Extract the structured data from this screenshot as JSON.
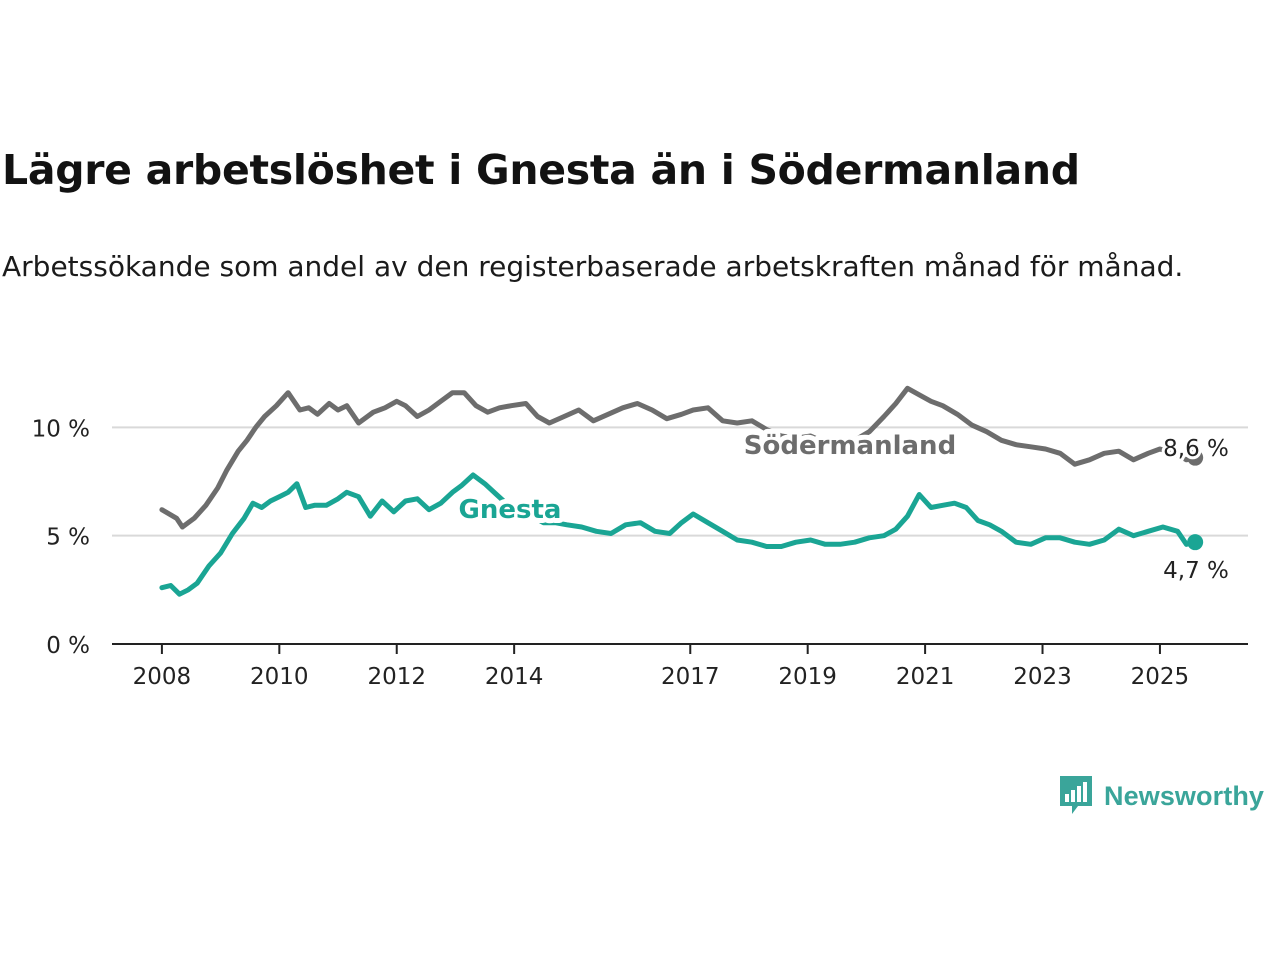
{
  "title": "Lägre arbetslöshet i Gnesta än i Södermanland",
  "subtitle": "Arbetssökande som andel av den registerbaserade arbetskraften månad för månad.",
  "brand": {
    "name": "Newsworthy",
    "color": "#3aa59a",
    "icon": "bar-chart-speech-bubble-icon"
  },
  "chart_data": {
    "type": "line",
    "title": "Lägre arbetslöshet i Gnesta än i Södermanland",
    "subtitle": "Arbetssökande som andel av den registerbaserade arbetskraften månad för månad.",
    "xlabel": "",
    "ylabel": "",
    "x_ticks": [
      "2008",
      "2010",
      "2012",
      "2014",
      "2017",
      "2019",
      "2021",
      "2023",
      "2025"
    ],
    "x_tick_values": [
      2008,
      2010,
      2012,
      2014,
      2017,
      2019,
      2021,
      2023,
      2025
    ],
    "y_ticks": [
      "0 %",
      "5 %",
      "10 %"
    ],
    "y_tick_values": [
      0,
      5,
      10
    ],
    "xlim": [
      2007.15,
      2026.5
    ],
    "ylim": [
      0,
      12
    ],
    "grid": "horizontal",
    "legend": "direct labels on lines",
    "series": [
      {
        "name": "Södermanland",
        "color": "#6d6d6d",
        "end_label": "8,6 %",
        "x": [
          2008.0,
          2008.25,
          2008.35,
          2008.55,
          2008.75,
          2008.95,
          2009.1,
          2009.3,
          2009.45,
          2009.6,
          2009.75,
          2009.95,
          2010.15,
          2010.35,
          2010.5,
          2010.65,
          2010.85,
          2011.0,
          2011.15,
          2011.35,
          2011.6,
          2011.8,
          2012.0,
          2012.15,
          2012.35,
          2012.55,
          2012.75,
          2012.95,
          2013.15,
          2013.35,
          2013.55,
          2013.75,
          2013.95,
          2014.2,
          2014.4,
          2014.6,
          2014.85,
          2015.1,
          2015.35,
          2015.6,
          2015.85,
          2016.1,
          2016.35,
          2016.6,
          2016.85,
          2017.05,
          2017.3,
          2017.55,
          2017.8,
          2018.05,
          2018.3,
          2018.55,
          2018.8,
          2019.05,
          2019.3,
          2019.55,
          2019.8,
          2020.05,
          2020.3,
          2020.5,
          2020.7,
          2020.9,
          2021.1,
          2021.3,
          2021.55,
          2021.8,
          2022.05,
          2022.3,
          2022.55,
          2022.8,
          2023.05,
          2023.3,
          2023.55,
          2023.8,
          2024.05,
          2024.3,
          2024.55,
          2024.8,
          2025.0,
          2025.25,
          2025.45,
          2025.6
        ],
        "values": [
          6.2,
          5.8,
          5.4,
          5.8,
          6.4,
          7.2,
          8.0,
          8.9,
          9.4,
          10.0,
          10.5,
          11.0,
          11.6,
          10.8,
          10.9,
          10.6,
          11.1,
          10.8,
          11.0,
          10.2,
          10.7,
          10.9,
          11.2,
          11.0,
          10.5,
          10.8,
          11.2,
          11.6,
          11.6,
          11.0,
          10.7,
          10.9,
          11.0,
          11.1,
          10.5,
          10.2,
          10.5,
          10.8,
          10.3,
          10.6,
          10.9,
          11.1,
          10.8,
          10.4,
          10.6,
          10.8,
          10.9,
          10.3,
          10.2,
          10.3,
          9.9,
          9.6,
          9.5,
          9.6,
          9.3,
          9.1,
          9.4,
          9.8,
          10.5,
          11.1,
          11.8,
          11.5,
          11.2,
          11.0,
          10.6,
          10.1,
          9.8,
          9.4,
          9.2,
          9.1,
          9.0,
          8.8,
          8.3,
          8.5,
          8.8,
          8.9,
          8.5,
          8.8,
          9.0,
          8.8,
          8.5,
          8.6
        ]
      },
      {
        "name": "Gnesta",
        "color": "#1aa594",
        "end_label": "4,7 %",
        "x": [
          2008.0,
          2008.15,
          2008.3,
          2008.45,
          2008.6,
          2008.8,
          2009.0,
          2009.2,
          2009.4,
          2009.55,
          2009.7,
          2009.85,
          2010.0,
          2010.15,
          2010.3,
          2010.45,
          2010.6,
          2010.8,
          2011.0,
          2011.15,
          2011.35,
          2011.55,
          2011.75,
          2011.95,
          2012.15,
          2012.35,
          2012.55,
          2012.75,
          2012.95,
          2013.1,
          2013.3,
          2013.5,
          2013.7,
          2013.9,
          2014.1,
          2014.3,
          2014.5,
          2014.7,
          2014.9,
          2015.15,
          2015.4,
          2015.65,
          2015.9,
          2016.15,
          2016.4,
          2016.65,
          2016.85,
          2017.05,
          2017.3,
          2017.55,
          2017.8,
          2018.05,
          2018.3,
          2018.55,
          2018.8,
          2019.05,
          2019.3,
          2019.55,
          2019.8,
          2020.05,
          2020.3,
          2020.5,
          2020.7,
          2020.9,
          2021.1,
          2021.3,
          2021.5,
          2021.7,
          2021.9,
          2022.1,
          2022.3,
          2022.55,
          2022.8,
          2023.05,
          2023.3,
          2023.55,
          2023.8,
          2024.05,
          2024.3,
          2024.55,
          2024.8,
          2025.05,
          2025.3,
          2025.45,
          2025.6
        ],
        "values": [
          2.6,
          2.7,
          2.3,
          2.5,
          2.8,
          3.6,
          4.2,
          5.1,
          5.8,
          6.5,
          6.3,
          6.6,
          6.8,
          7.0,
          7.4,
          6.3,
          6.4,
          6.4,
          6.7,
          7.0,
          6.8,
          5.9,
          6.6,
          6.1,
          6.6,
          6.7,
          6.2,
          6.5,
          7.0,
          7.3,
          7.8,
          7.4,
          6.9,
          6.4,
          6.0,
          5.9,
          5.6,
          5.6,
          5.5,
          5.4,
          5.2,
          5.1,
          5.5,
          5.6,
          5.2,
          5.1,
          5.6,
          6.0,
          5.6,
          5.2,
          4.8,
          4.7,
          4.5,
          4.5,
          4.7,
          4.8,
          4.6,
          4.6,
          4.7,
          4.9,
          5.0,
          5.3,
          5.9,
          6.9,
          6.3,
          6.4,
          6.5,
          6.3,
          5.7,
          5.5,
          5.2,
          4.7,
          4.6,
          4.9,
          4.9,
          4.7,
          4.6,
          4.8,
          5.3,
          5.0,
          5.2,
          5.4,
          5.2,
          4.6,
          4.7
        ]
      }
    ]
  }
}
